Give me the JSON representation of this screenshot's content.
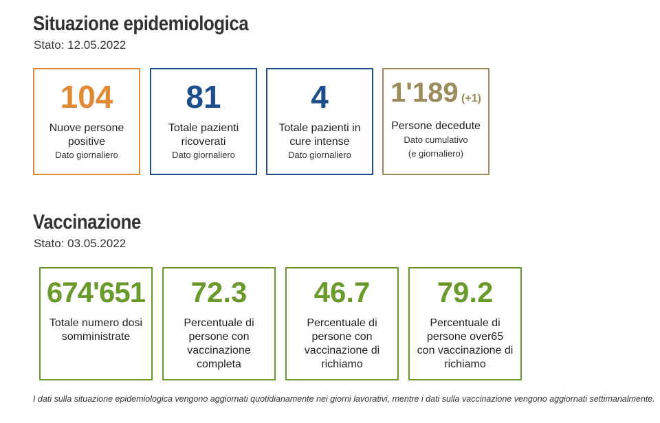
{
  "epi": {
    "title": "Situazione epidemiologica",
    "stato": "Stato: 12.05.2022",
    "cards": [
      {
        "value": "104",
        "label": "Nuove persone positive",
        "sub": "Dato giornaliero",
        "color": "#e08a36"
      },
      {
        "value": "81",
        "label": "Totale pazienti ricoverati",
        "sub": "Dato giornaliero",
        "color": "#1f4e8c"
      },
      {
        "value": "4",
        "label": "Totale pazienti in cure intense",
        "sub": "Dato giornaliero",
        "color": "#1f4e8c"
      },
      {
        "value": "1'189",
        "delta": "(+1)",
        "label": "Persone decedute",
        "sub": "Dato cumulativo",
        "sub2": "(e giornaliero)",
        "color": "#9c8a5a"
      }
    ]
  },
  "vacc": {
    "title": "Vaccinazione",
    "stato": "Stato: 03.05.2022",
    "cards": [
      {
        "value": "674'651",
        "label": "Totale numero dosi somministrate",
        "color": "#6a9a2c"
      },
      {
        "value": "72.3",
        "label": "Percentuale di persone con vaccinazione completa",
        "color": "#6a9a2c"
      },
      {
        "value": "46.7",
        "label": "Percentuale di persone con vaccinazione di richiamo",
        "color": "#6a9a2c"
      },
      {
        "value": "79.2",
        "label": "Percentuale di persone over65 con vaccinazione di richiamo",
        "color": "#6a9a2c"
      }
    ]
  },
  "footer": "I dati sulla situazione epidemiologica vengono aggiornati quotidianamente nei giorni lavorativi, mentre i dati sulla vaccinazione vengono aggiornati settimanalmente."
}
